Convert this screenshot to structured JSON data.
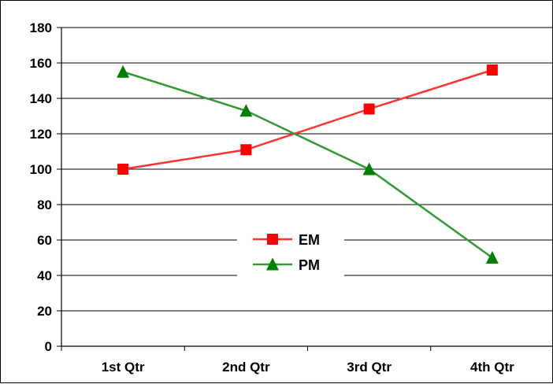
{
  "chart_data": {
    "type": "line",
    "title": "",
    "xlabel": "",
    "ylabel": "",
    "categories": [
      "1st Qtr",
      "2nd Qtr",
      "3rd Qtr",
      "4th Qtr"
    ],
    "ylim": [
      0,
      180
    ],
    "yticks": [
      0,
      20,
      40,
      60,
      80,
      100,
      120,
      140,
      160,
      180
    ],
    "grid": true,
    "legend_position": "center",
    "series": [
      {
        "name": "EM",
        "values": [
          100,
          111,
          134,
          156
        ],
        "color": "#ff3333",
        "marker": "square",
        "marker_color": "#ff0000"
      },
      {
        "name": "PM",
        "values": [
          155,
          133,
          100,
          50
        ],
        "color": "#339933",
        "marker": "triangle",
        "marker_color": "#008000"
      }
    ]
  }
}
